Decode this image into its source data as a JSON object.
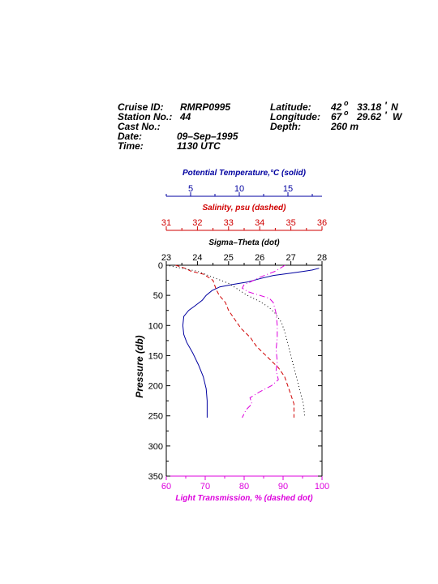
{
  "header": {
    "cruise_id_label": "Cruise ID:",
    "cruise_id_value": "RMRP0995",
    "station_label": "Station No.:",
    "station_value": "44",
    "cast_label": "Cast No.:",
    "cast_value": "",
    "date_label": "Date:",
    "date_value": "09–Sep–1995",
    "time_label": "Time:",
    "time_value": "1130 UTC",
    "latitude_label": "Latitude:",
    "latitude_deg": "42",
    "latitude_min": "33.18",
    "latitude_hemi": "N",
    "longitude_label": "Longitude:",
    "longitude_deg": "67",
    "longitude_min": "29.62",
    "longitude_hemi": "W",
    "depth_label": "Depth:",
    "depth_value": "260 m",
    "degree_mark": "o",
    "minute_mark": "'"
  },
  "colors": {
    "temperature": "#0000a0",
    "salinity": "#d00000",
    "sigma": "#000000",
    "transmission": "#dd00dd"
  },
  "chart_data": {
    "type": "line",
    "y_axis": {
      "label": "Pressure (db)",
      "range": [
        0,
        350
      ],
      "inverted": true,
      "ticks": [
        0,
        50,
        100,
        150,
        200,
        250,
        300,
        350
      ]
    },
    "x_axes": [
      {
        "id": "temperature",
        "label": "Potential Temperature,°C (solid)",
        "range": [
          2.5,
          18.5
        ],
        "ticks": [
          5,
          10,
          15
        ]
      },
      {
        "id": "salinity",
        "label": "Salinity, psu  (dashed)",
        "range": [
          31,
          36
        ],
        "ticks": [
          31,
          32,
          33,
          34,
          35,
          36
        ]
      },
      {
        "id": "sigma",
        "label": "Sigma–Theta (dot)",
        "range": [
          23,
          28
        ],
        "ticks": [
          23,
          24,
          25,
          26,
          27,
          28
        ]
      },
      {
        "id": "transmission",
        "label": "Light Transmission, % (dashed dot)",
        "range": [
          60,
          100
        ],
        "ticks": [
          60,
          70,
          80,
          90,
          100
        ]
      }
    ],
    "series": [
      {
        "axis": "temperature",
        "style": "solid",
        "points": [
          [
            18.2,
            5
          ],
          [
            17.5,
            8
          ],
          [
            16.7,
            10
          ],
          [
            15.3,
            13
          ],
          [
            13.5,
            17
          ],
          [
            12.2,
            22
          ],
          [
            10.8,
            28
          ],
          [
            9.3,
            32
          ],
          [
            8.0,
            36
          ],
          [
            7.2,
            42
          ],
          [
            6.6,
            50
          ],
          [
            6.2,
            58
          ],
          [
            5.4,
            68
          ],
          [
            4.8,
            75
          ],
          [
            4.3,
            85
          ],
          [
            4.2,
            100
          ],
          [
            4.3,
            115
          ],
          [
            4.6,
            128
          ],
          [
            5.2,
            145
          ],
          [
            5.8,
            165
          ],
          [
            6.3,
            185
          ],
          [
            6.6,
            205
          ],
          [
            6.7,
            225
          ],
          [
            6.7,
            253
          ]
        ]
      },
      {
        "axis": "salinity",
        "style": "dashed",
        "points": [
          [
            31.3,
            0
          ],
          [
            31.6,
            5
          ],
          [
            31.8,
            10
          ],
          [
            32.2,
            15
          ],
          [
            32.5,
            25
          ],
          [
            32.6,
            40
          ],
          [
            32.7,
            50
          ],
          [
            32.9,
            62
          ],
          [
            33.0,
            75
          ],
          [
            33.2,
            90
          ],
          [
            33.4,
            105
          ],
          [
            33.7,
            120
          ],
          [
            33.9,
            135
          ],
          [
            34.2,
            150
          ],
          [
            34.6,
            170
          ],
          [
            34.8,
            185
          ],
          [
            34.9,
            200
          ],
          [
            35.0,
            215
          ],
          [
            35.1,
            230
          ],
          [
            35.1,
            245
          ],
          [
            35.1,
            253
          ]
        ]
      },
      {
        "axis": "sigma",
        "style": "dotted",
        "points": [
          [
            23.0,
            0
          ],
          [
            23.5,
            5
          ],
          [
            24.0,
            10
          ],
          [
            24.5,
            20
          ],
          [
            25.0,
            30
          ],
          [
            25.3,
            40
          ],
          [
            25.6,
            50
          ],
          [
            26.0,
            60
          ],
          [
            26.3,
            70
          ],
          [
            26.5,
            80
          ],
          [
            26.7,
            95
          ],
          [
            26.8,
            110
          ],
          [
            26.9,
            130
          ],
          [
            27.0,
            150
          ],
          [
            27.1,
            170
          ],
          [
            27.2,
            190
          ],
          [
            27.3,
            210
          ],
          [
            27.4,
            230
          ],
          [
            27.45,
            253
          ]
        ]
      },
      {
        "axis": "transmission",
        "style": "dashdot",
        "points": [
          [
            90.5,
            0
          ],
          [
            88.0,
            10
          ],
          [
            84.0,
            20
          ],
          [
            81.5,
            28
          ],
          [
            80.0,
            32
          ],
          [
            79.5,
            38
          ],
          [
            81.0,
            44
          ],
          [
            84.0,
            50
          ],
          [
            86.5,
            55
          ],
          [
            87.5,
            62
          ],
          [
            88.2,
            80
          ],
          [
            88.5,
            100
          ],
          [
            88.5,
            120
          ],
          [
            88.2,
            140
          ],
          [
            88.5,
            160
          ],
          [
            88.2,
            175
          ],
          [
            88.8,
            190
          ],
          [
            87.0,
            200
          ],
          [
            84.0,
            210
          ],
          [
            81.5,
            220
          ],
          [
            82.0,
            230
          ],
          [
            80.5,
            240
          ],
          [
            79.5,
            253
          ]
        ]
      }
    ]
  }
}
